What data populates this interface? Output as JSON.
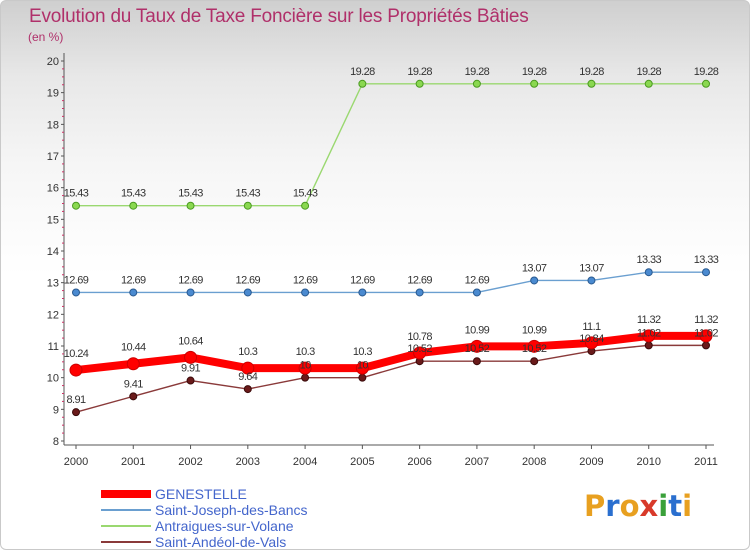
{
  "title": "Evolution du Taux de Taxe Foncière sur les Propriétés Bâties",
  "unit_label": "(en %)",
  "logo": {
    "text": "Proxiti",
    "letters": [
      "P",
      "r",
      "o",
      "x",
      "i",
      "t",
      "i"
    ],
    "letter_colors": [
      "#e8a020",
      "#2a6fcf",
      "#e8a020",
      "#d83a2a",
      "#3aa03a",
      "#2a6fcf",
      "#e8a020"
    ]
  },
  "chart_data": {
    "type": "line",
    "title": "Evolution du Taux de Taxe Foncière sur les Propriétés Bâties",
    "ylabel": "(en %)",
    "xlabel": "",
    "x": [
      "2000",
      "2001",
      "2002",
      "2003",
      "2004",
      "2005",
      "2006",
      "2007",
      "2008",
      "2009",
      "2010",
      "2011"
    ],
    "ylim": [
      8,
      20
    ],
    "yticks": [
      "8",
      "9",
      "10",
      "11",
      "12",
      "13",
      "14",
      "15",
      "16",
      "17",
      "18",
      "19",
      "20"
    ],
    "series": [
      {
        "name": "GENESTELLE",
        "color": "#ff0000",
        "values": [
          10.24,
          10.44,
          10.64,
          10.3,
          10.3,
          10.3,
          10.78,
          10.99,
          10.99,
          11.1,
          11.32,
          11.32
        ],
        "labels": [
          "10.24",
          "10.44",
          "10.64",
          "10.3",
          "10.3",
          "10.3",
          "10.78",
          "10.99",
          "10.99",
          "11.1",
          "11.32",
          "11.32"
        ]
      },
      {
        "name": "Saint-Joseph-des-Bancs",
        "color": "#6a9fd0",
        "values": [
          12.69,
          12.69,
          12.69,
          12.69,
          12.69,
          12.69,
          12.69,
          12.69,
          13.07,
          13.07,
          13.33,
          13.33
        ],
        "labels": [
          "12.69",
          "12.69",
          "12.69",
          "12.69",
          "12.69",
          "12.69",
          "12.69",
          "12.69",
          "13.07",
          "13.07",
          "13.33",
          "13.33"
        ]
      },
      {
        "name": "Antraigues-sur-Volane",
        "color": "#9ad870",
        "values": [
          15.43,
          15.43,
          15.43,
          15.43,
          15.43,
          19.28,
          19.28,
          19.28,
          19.28,
          19.28,
          19.28,
          19.28
        ],
        "labels": [
          "15.43",
          "15.43",
          "15.43",
          "15.43",
          "15.43",
          "19.28",
          "19.28",
          "19.28",
          "19.28",
          "19.28",
          "19.28",
          "19.28"
        ]
      },
      {
        "name": "Saint-Andéol-de-Vals",
        "color": "#8a3a3a",
        "values": [
          8.91,
          9.41,
          9.91,
          9.64,
          10,
          10,
          10.52,
          10.52,
          10.52,
          10.84,
          11.02,
          11.02
        ],
        "labels": [
          "8.91",
          "9.41",
          "9.91",
          "9.64",
          "10",
          "10",
          "10.52",
          "10.52",
          "10.52",
          "10.84",
          "11.02",
          "11.02"
        ]
      }
    ],
    "legend": "bottom-left",
    "grid": false
  }
}
